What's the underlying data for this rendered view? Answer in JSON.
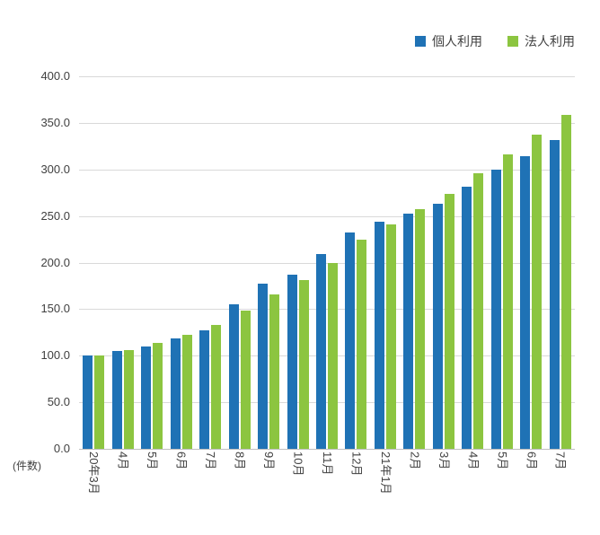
{
  "chart_data": {
    "type": "bar",
    "title": "",
    "categories": [
      "20年3月",
      "4月",
      "5月",
      "6月",
      "7月",
      "8月",
      "9月",
      "10月",
      "11月",
      "12月",
      "21年1月",
      "2月",
      "3月",
      "4月",
      "5月",
      "6月",
      "7月"
    ],
    "series": [
      {
        "name": "個人利用",
        "color": "#1F72B5",
        "values": [
          100,
          105,
          110,
          119,
          127,
          155,
          177,
          187,
          209,
          232,
          244,
          253,
          263,
          281,
          300,
          314,
          332
        ]
      },
      {
        "name": "法人利用",
        "color": "#8CC540",
        "values": [
          100,
          106,
          114,
          122,
          133,
          148,
          166,
          181,
          200,
          225,
          241,
          257,
          274,
          296,
          316,
          337,
          359
        ]
      }
    ],
    "xlabel": "",
    "ylabel": "(件数)",
    "ylim": [
      0,
      400
    ],
    "ytick_interval": 50,
    "yticks": [
      "0.0",
      "50.0",
      "100.0",
      "150.0",
      "200.0",
      "250.0",
      "300.0",
      "350.0",
      "400.0"
    ],
    "grid": true,
    "legend_position": "top-right",
    "colors": {
      "gridline": "#D9D9D9",
      "axis_line": "#BFBFBF",
      "text": "#404040"
    }
  }
}
